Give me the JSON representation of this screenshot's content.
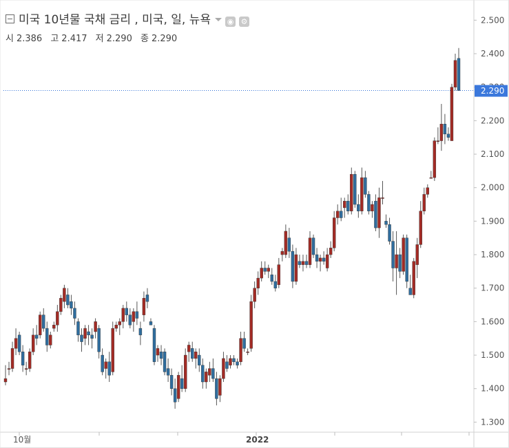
{
  "header": {
    "title": "미국 10년물 국채 금리 , 미국, 일, 뉴욕"
  },
  "ohlc": {
    "open_label": "시",
    "open": "2.386",
    "high_label": "고",
    "high": "2.417",
    "low_label": "저",
    "low": "2.290",
    "close_label": "종",
    "close": "2.290"
  },
  "chart_data": {
    "type": "candlestick",
    "y_ticks": [
      "2.500",
      "2.400",
      "2.300",
      "2.200",
      "2.100",
      "2.000",
      "1.900",
      "1.800",
      "1.700",
      "1.600",
      "1.500",
      "1.400",
      "1.300"
    ],
    "ylim": [
      1.27,
      2.55
    ],
    "x_labels": [
      "10월",
      "2022"
    ],
    "current_value_label": "2.290",
    "current_value": 2.29,
    "grid": false,
    "colors": {
      "up": "#a32b25",
      "down": "#2f6d9e",
      "wick": "#555555",
      "price_line": "#2f6fd6",
      "price_tag": "#3b78dc"
    },
    "candles": [
      [
        1.42,
        1.47,
        1.41,
        1.43
      ],
      [
        1.46,
        1.48,
        1.44,
        1.46
      ],
      [
        1.46,
        1.54,
        1.45,
        1.52
      ],
      [
        1.52,
        1.58,
        1.5,
        1.55
      ],
      [
        1.56,
        1.57,
        1.5,
        1.51
      ],
      [
        1.51,
        1.53,
        1.45,
        1.47
      ],
      [
        1.46,
        1.48,
        1.44,
        1.46
      ],
      [
        1.46,
        1.52,
        1.45,
        1.51
      ],
      [
        1.51,
        1.58,
        1.5,
        1.56
      ],
      [
        1.56,
        1.59,
        1.53,
        1.55
      ],
      [
        1.56,
        1.63,
        1.55,
        1.62
      ],
      [
        1.62,
        1.64,
        1.57,
        1.58
      ],
      [
        1.58,
        1.6,
        1.51,
        1.53
      ],
      [
        1.53,
        1.57,
        1.52,
        1.56
      ],
      [
        1.58,
        1.6,
        1.57,
        1.59
      ],
      [
        1.59,
        1.65,
        1.57,
        1.63
      ],
      [
        1.63,
        1.68,
        1.62,
        1.67
      ],
      [
        1.66,
        1.71,
        1.64,
        1.7
      ],
      [
        1.68,
        1.7,
        1.64,
        1.65
      ],
      [
        1.66,
        1.68,
        1.62,
        1.64
      ],
      [
        1.64,
        1.66,
        1.59,
        1.61
      ],
      [
        1.6,
        1.61,
        1.54,
        1.56
      ],
      [
        1.56,
        1.58,
        1.51,
        1.54
      ],
      [
        1.55,
        1.59,
        1.53,
        1.58
      ],
      [
        1.57,
        1.59,
        1.53,
        1.56
      ],
      [
        1.56,
        1.58,
        1.52,
        1.55
      ],
      [
        1.57,
        1.61,
        1.55,
        1.6
      ],
      [
        1.58,
        1.59,
        1.49,
        1.51
      ],
      [
        1.5,
        1.52,
        1.44,
        1.45
      ],
      [
        1.46,
        1.49,
        1.43,
        1.48
      ],
      [
        1.48,
        1.51,
        1.42,
        1.44
      ],
      [
        1.45,
        1.6,
        1.44,
        1.58
      ],
      [
        1.58,
        1.6,
        1.57,
        1.59
      ],
      [
        1.59,
        1.61,
        1.56,
        1.6
      ],
      [
        1.6,
        1.65,
        1.58,
        1.64
      ],
      [
        1.64,
        1.66,
        1.6,
        1.62
      ],
      [
        1.62,
        1.64,
        1.58,
        1.59
      ],
      [
        1.6,
        1.64,
        1.57,
        1.63
      ],
      [
        1.63,
        1.66,
        1.59,
        1.61
      ],
      [
        1.58,
        1.6,
        1.53,
        1.56
      ],
      [
        1.62,
        1.69,
        1.6,
        1.67
      ],
      [
        1.68,
        1.7,
        1.64,
        1.66
      ],
      [
        1.6,
        1.61,
        1.59,
        1.59
      ],
      [
        1.58,
        1.59,
        1.47,
        1.48
      ],
      [
        1.5,
        1.53,
        1.48,
        1.52
      ],
      [
        1.51,
        1.53,
        1.47,
        1.49
      ],
      [
        1.51,
        1.52,
        1.44,
        1.45
      ],
      [
        1.46,
        1.49,
        1.42,
        1.44
      ],
      [
        1.44,
        1.46,
        1.38,
        1.4
      ],
      [
        1.4,
        1.43,
        1.34,
        1.36
      ],
      [
        1.37,
        1.45,
        1.36,
        1.44
      ],
      [
        1.43,
        1.47,
        1.39,
        1.4
      ],
      [
        1.4,
        1.52,
        1.39,
        1.5
      ],
      [
        1.51,
        1.54,
        1.48,
        1.53
      ],
      [
        1.52,
        1.54,
        1.48,
        1.49
      ],
      [
        1.49,
        1.52,
        1.46,
        1.51
      ],
      [
        1.5,
        1.52,
        1.45,
        1.47
      ],
      [
        1.47,
        1.49,
        1.4,
        1.42
      ],
      [
        1.42,
        1.46,
        1.4,
        1.45
      ],
      [
        1.44,
        1.48,
        1.42,
        1.46
      ],
      [
        1.46,
        1.49,
        1.42,
        1.43
      ],
      [
        1.43,
        1.45,
        1.35,
        1.37
      ],
      [
        1.38,
        1.44,
        1.36,
        1.43
      ],
      [
        1.43,
        1.51,
        1.42,
        1.49
      ],
      [
        1.48,
        1.5,
        1.45,
        1.46
      ],
      [
        1.47,
        1.5,
        1.46,
        1.49
      ],
      [
        1.49,
        1.5,
        1.47,
        1.48
      ],
      [
        1.48,
        1.49,
        1.46,
        1.47
      ],
      [
        1.48,
        1.57,
        1.47,
        1.55
      ],
      [
        1.55,
        1.57,
        1.51,
        1.52
      ],
      [
        1.51,
        1.52,
        1.5,
        1.51
      ],
      [
        1.52,
        1.68,
        1.51,
        1.66
      ],
      [
        1.66,
        1.72,
        1.64,
        1.7
      ],
      [
        1.7,
        1.75,
        1.68,
        1.73
      ],
      [
        1.73,
        1.78,
        1.72,
        1.76
      ],
      [
        1.76,
        1.78,
        1.74,
        1.75
      ],
      [
        1.75,
        1.77,
        1.73,
        1.76
      ],
      [
        1.74,
        1.76,
        1.71,
        1.72
      ],
      [
        1.72,
        1.74,
        1.69,
        1.7
      ],
      [
        1.71,
        1.79,
        1.7,
        1.77
      ],
      [
        1.8,
        1.82,
        1.78,
        1.81
      ],
      [
        1.8,
        1.89,
        1.79,
        1.87
      ],
      [
        1.85,
        1.88,
        1.79,
        1.81
      ],
      [
        1.81,
        1.83,
        1.7,
        1.72
      ],
      [
        1.72,
        1.82,
        1.71,
        1.8
      ],
      [
        1.78,
        1.8,
        1.76,
        1.77
      ],
      [
        1.77,
        1.8,
        1.75,
        1.78
      ],
      [
        1.78,
        1.8,
        1.76,
        1.77
      ],
      [
        1.77,
        1.87,
        1.76,
        1.85
      ],
      [
        1.85,
        1.86,
        1.79,
        1.8
      ],
      [
        1.8,
        1.82,
        1.76,
        1.78
      ],
      [
        1.78,
        1.8,
        1.75,
        1.79
      ],
      [
        1.79,
        1.81,
        1.77,
        1.78
      ],
      [
        1.76,
        1.82,
        1.75,
        1.8
      ],
      [
        1.8,
        1.84,
        1.79,
        1.82
      ],
      [
        1.82,
        1.93,
        1.81,
        1.91
      ],
      [
        1.91,
        1.95,
        1.89,
        1.93
      ],
      [
        1.93,
        1.97,
        1.9,
        1.91
      ],
      [
        1.94,
        1.97,
        1.91,
        1.96
      ],
      [
        1.96,
        1.98,
        1.92,
        1.93
      ],
      [
        1.93,
        2.06,
        1.92,
        2.04
      ],
      [
        2.04,
        2.05,
        1.94,
        1.95
      ],
      [
        1.95,
        1.98,
        1.91,
        1.93
      ],
      [
        1.93,
        2.06,
        1.92,
        2.03
      ],
      [
        2.03,
        2.05,
        1.97,
        1.98
      ],
      [
        1.98,
        1.99,
        1.92,
        1.93
      ],
      [
        1.93,
        1.96,
        1.91,
        1.95
      ],
      [
        1.96,
        1.98,
        1.87,
        1.88
      ],
      [
        1.88,
        2.0,
        1.85,
        1.97
      ],
      [
        1.97,
        2.02,
        1.95,
        1.97
      ],
      [
        1.9,
        1.92,
        1.88,
        1.89
      ],
      [
        1.89,
        1.91,
        1.83,
        1.84
      ],
      [
        1.84,
        1.87,
        1.72,
        1.76
      ],
      [
        1.76,
        1.87,
        1.68,
        1.8
      ],
      [
        1.8,
        1.82,
        1.73,
        1.75
      ],
      [
        1.75,
        1.86,
        1.74,
        1.85
      ],
      [
        1.85,
        1.86,
        1.7,
        1.72
      ],
      [
        1.7,
        1.74,
        1.68,
        1.68
      ],
      [
        1.68,
        1.79,
        1.67,
        1.78
      ],
      [
        1.77,
        1.85,
        1.73,
        1.83
      ],
      [
        1.83,
        1.96,
        1.82,
        1.93
      ],
      [
        1.93,
        2.0,
        1.92,
        1.98
      ],
      [
        1.98,
        2.01,
        1.97,
        2.0
      ],
      [
        2.03,
        2.05,
        2.03,
        2.03
      ],
      [
        2.03,
        2.15,
        2.02,
        2.14
      ],
      [
        2.14,
        2.18,
        2.13,
        2.14
      ],
      [
        2.14,
        2.25,
        2.11,
        2.19
      ],
      [
        2.19,
        2.22,
        2.13,
        2.16
      ],
      [
        2.16,
        2.18,
        2.14,
        2.15
      ],
      [
        2.14,
        2.31,
        2.14,
        2.3
      ],
      [
        2.3,
        2.4,
        2.29,
        2.38
      ],
      [
        2.386,
        2.417,
        2.29,
        2.29
      ]
    ]
  }
}
